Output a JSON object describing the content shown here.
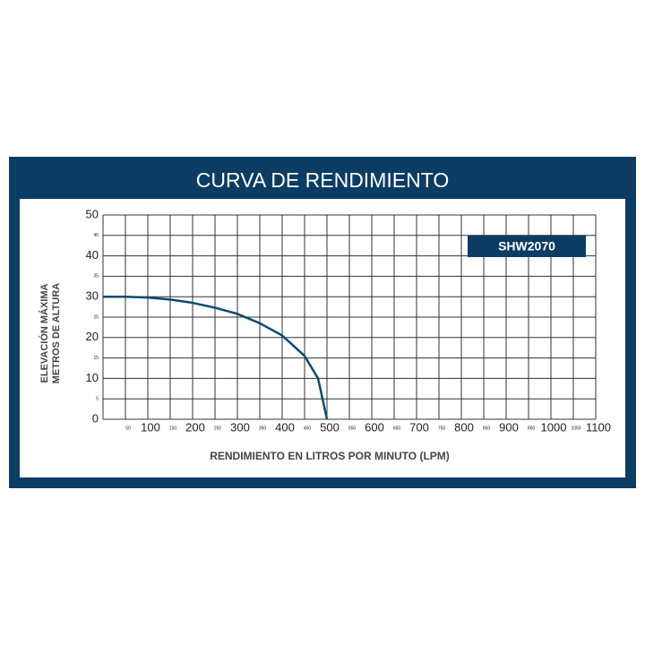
{
  "chart_data": {
    "type": "line",
    "title": "CURVA DE RENDIMIENTO",
    "x_label": "RENDIMIENTO EN LITROS POR MINUTO (LPM)",
    "y_label": [
      "ELEVACIÓN MÁXIMA",
      "METROS DE ALTURA"
    ],
    "x": [
      0,
      50,
      100,
      150,
      200,
      250,
      300,
      350,
      400,
      450,
      480,
      500
    ],
    "series": [
      {
        "name": "SHW2070",
        "color": "#0d4a6e",
        "values": [
          30,
          30,
          29.8,
          29.3,
          28.5,
          27.3,
          25.8,
          23.5,
          20.5,
          15.5,
          10,
          0
        ]
      }
    ],
    "xlim": [
      0,
      1100
    ],
    "ylim": [
      0,
      50
    ],
    "xticks": [
      50,
      100,
      150,
      200,
      250,
      300,
      350,
      400,
      450,
      500,
      550,
      600,
      650,
      700,
      750,
      800,
      850,
      900,
      950,
      1000,
      1050,
      1100
    ],
    "yticks": [
      0,
      5,
      10,
      15,
      20,
      25,
      30,
      35,
      40,
      45,
      50
    ],
    "grid": true,
    "frame_color": "#0b3c64"
  }
}
